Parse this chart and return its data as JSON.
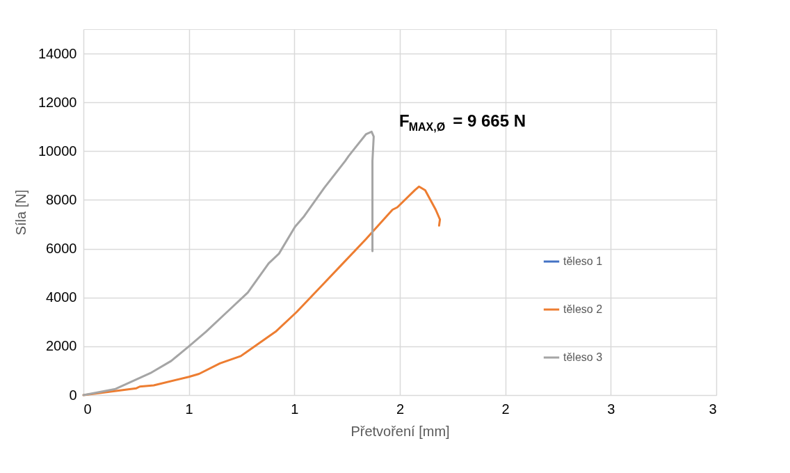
{
  "chart_data": {
    "type": "line",
    "xlabel": "Přetvoření [mm]",
    "ylabel": "Síla [N]",
    "xlim": [
      0,
      3
    ],
    "xticks": [
      0,
      {
        "value": 0.5,
        "label": "1"
      },
      1,
      {
        "value": 1.5,
        "label": "2"
      },
      2,
      {
        "value": 2.5,
        "label": "3"
      },
      3
    ],
    "ylim": [
      0,
      15000
    ],
    "yticks": [
      0,
      2000,
      4000,
      6000,
      8000,
      10000,
      12000,
      14000
    ],
    "grid": true,
    "legend": "right",
    "line_style": "solid",
    "marker": "none",
    "annotations": [
      "F$_{MAX,Ø}$ = 9 665 N"
    ],
    "series": [
      {
        "name": "těleso 1",
        "color": "#4472c4"
      },
      {
        "name": "těleso 2",
        "color": "#ed7d31",
        "x": [
          0,
          0.251,
          0.267,
          0.333,
          0.5,
          0.548,
          0.647,
          0.746,
          0.878,
          0.911,
          1.01,
          1.043,
          1.142,
          1.241,
          1.34,
          1.465,
          1.488,
          1.571,
          1.591,
          1.62,
          1.67,
          1.69,
          1.686
        ],
        "values": [
          0,
          280,
          350,
          400,
          750,
          870,
          1300,
          1600,
          2400,
          2600,
          3400,
          3700,
          4600,
          5500,
          6400,
          7600,
          7700,
          8400,
          8550,
          8400,
          7600,
          7200,
          6950
        ]
      },
      {
        "name": "těleso 3",
        "color": "#a5a5a5",
        "x": [
          0,
          0.152,
          0.317,
          0.416,
          0.5,
          0.581,
          0.68,
          0.779,
          0.878,
          0.927,
          1.003,
          1.043,
          1.142,
          1.241,
          1.257,
          1.34,
          1.366,
          1.376,
          1.37,
          1.37
        ],
        "values": [
          0,
          250,
          900,
          1400,
          2000,
          2600,
          3400,
          4200,
          5400,
          5800,
          6900,
          7300,
          8500,
          9600,
          9800,
          10700,
          10800,
          10600,
          9600,
          5900
        ]
      }
    ]
  }
}
